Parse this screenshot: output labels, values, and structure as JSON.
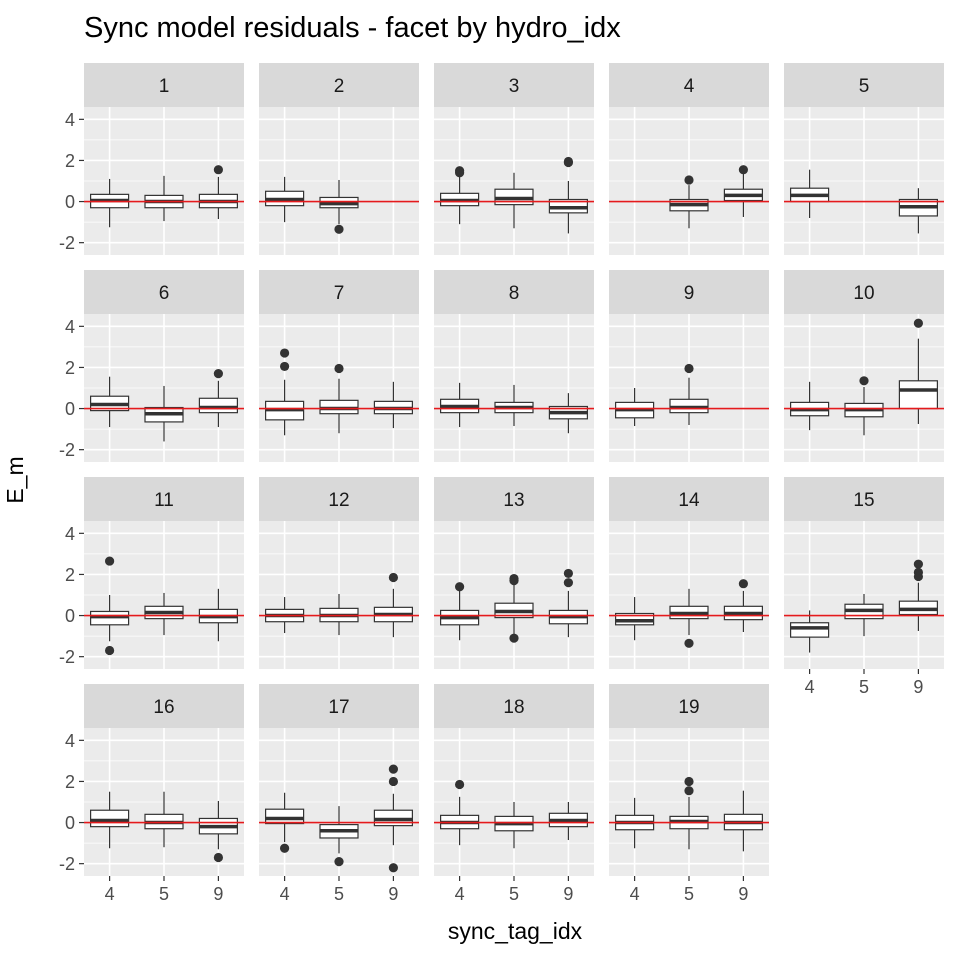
{
  "chart_data": {
    "type": "boxplot",
    "title": "Sync model residuals - facet by hydro_idx",
    "xlabel": "sync_tag_idx",
    "ylabel": "E_m",
    "ylim": [
      -2.6,
      4.6
    ],
    "yticks": [
      -2,
      0,
      2,
      4
    ],
    "categories": [
      "4",
      "5",
      "9"
    ],
    "reference_line": {
      "y": 0,
      "color": "#e41a1c"
    },
    "grid": true,
    "colors": {
      "panel_bg": "#ebebeb",
      "strip_bg": "#d9d9d9",
      "grid": "#ffffff",
      "box_fill": "#ffffff",
      "box_line": "#333333",
      "outlier": "#333333"
    },
    "facets": [
      {
        "label": "1",
        "boxes": [
          {
            "x": "4",
            "lower": -1.25,
            "q1": -0.3,
            "median": 0.05,
            "q3": 0.35,
            "upper": 1.1,
            "outliers": []
          },
          {
            "x": "5",
            "lower": -0.95,
            "q1": -0.3,
            "median": 0.0,
            "q3": 0.3,
            "upper": 1.25,
            "outliers": []
          },
          {
            "x": "9",
            "lower": -0.85,
            "q1": -0.3,
            "median": 0.0,
            "q3": 0.35,
            "upper": 1.2,
            "outliers": [
              1.55
            ]
          }
        ]
      },
      {
        "label": "2",
        "boxes": [
          {
            "x": "4",
            "lower": -1.0,
            "q1": -0.2,
            "median": 0.1,
            "q3": 0.5,
            "upper": 1.2,
            "outliers": []
          },
          {
            "x": "5",
            "lower": -1.1,
            "q1": -0.3,
            "median": -0.1,
            "q3": 0.2,
            "upper": 1.05,
            "outliers": [
              -1.35
            ]
          }
        ]
      },
      {
        "label": "3",
        "boxes": [
          {
            "x": "4",
            "lower": -1.1,
            "q1": -0.2,
            "median": 0.05,
            "q3": 0.4,
            "upper": 1.3,
            "outliers": [
              1.5,
              1.4
            ]
          },
          {
            "x": "5",
            "lower": -1.3,
            "q1": -0.15,
            "median": 0.15,
            "q3": 0.6,
            "upper": 1.4,
            "outliers": []
          },
          {
            "x": "9",
            "lower": -1.55,
            "q1": -0.55,
            "median": -0.3,
            "q3": 0.1,
            "upper": 1.0,
            "outliers": [
              1.9,
              1.95
            ]
          }
        ]
      },
      {
        "label": "4",
        "boxes": [
          {
            "x": "5",
            "lower": -1.3,
            "q1": -0.45,
            "median": -0.15,
            "q3": 0.1,
            "upper": 0.8,
            "outliers": [
              1.05
            ]
          },
          {
            "x": "9",
            "lower": -0.75,
            "q1": 0.05,
            "median": 0.3,
            "q3": 0.6,
            "upper": 1.35,
            "outliers": [
              1.55
            ]
          }
        ]
      },
      {
        "label": "5",
        "boxes": [
          {
            "x": "4",
            "lower": -0.8,
            "q1": 0.0,
            "median": 0.3,
            "q3": 0.65,
            "upper": 1.55,
            "outliers": []
          },
          {
            "x": "9",
            "lower": -1.55,
            "q1": -0.7,
            "median": -0.25,
            "q3": 0.1,
            "upper": 0.65,
            "outliers": []
          }
        ]
      },
      {
        "label": "6",
        "boxes": [
          {
            "x": "4",
            "lower": -0.9,
            "q1": -0.1,
            "median": 0.2,
            "q3": 0.6,
            "upper": 1.55,
            "outliers": []
          },
          {
            "x": "5",
            "lower": -1.6,
            "q1": -0.65,
            "median": -0.25,
            "q3": 0.05,
            "upper": 1.1,
            "outliers": []
          },
          {
            "x": "9",
            "lower": -0.9,
            "q1": -0.2,
            "median": 0.05,
            "q3": 0.5,
            "upper": 1.35,
            "outliers": [
              1.7
            ]
          }
        ]
      },
      {
        "label": "7",
        "boxes": [
          {
            "x": "4",
            "lower": -1.3,
            "q1": -0.55,
            "median": -0.05,
            "q3": 0.35,
            "upper": 1.4,
            "outliers": [
              2.05,
              2.7
            ]
          },
          {
            "x": "5",
            "lower": -1.2,
            "q1": -0.25,
            "median": 0.0,
            "q3": 0.4,
            "upper": 1.45,
            "outliers": [
              1.95
            ]
          },
          {
            "x": "9",
            "lower": -0.95,
            "q1": -0.25,
            "median": 0.0,
            "q3": 0.35,
            "upper": 1.3,
            "outliers": []
          }
        ]
      },
      {
        "label": "8",
        "boxes": [
          {
            "x": "4",
            "lower": -0.9,
            "q1": -0.2,
            "median": 0.1,
            "q3": 0.45,
            "upper": 1.25,
            "outliers": []
          },
          {
            "x": "5",
            "lower": -0.85,
            "q1": -0.2,
            "median": 0.05,
            "q3": 0.3,
            "upper": 1.15,
            "outliers": []
          },
          {
            "x": "9",
            "lower": -1.2,
            "q1": -0.5,
            "median": -0.2,
            "q3": 0.1,
            "upper": 0.75,
            "outliers": []
          }
        ]
      },
      {
        "label": "9",
        "boxes": [
          {
            "x": "4",
            "lower": -0.85,
            "q1": -0.45,
            "median": -0.05,
            "q3": 0.3,
            "upper": 1.0,
            "outliers": []
          },
          {
            "x": "5",
            "lower": -0.8,
            "q1": -0.2,
            "median": 0.05,
            "q3": 0.45,
            "upper": 1.5,
            "outliers": [
              1.95
            ]
          }
        ]
      },
      {
        "label": "10",
        "boxes": [
          {
            "x": "4",
            "lower": -1.05,
            "q1": -0.35,
            "median": -0.05,
            "q3": 0.3,
            "upper": 1.3,
            "outliers": []
          },
          {
            "x": "5",
            "lower": -1.3,
            "q1": -0.4,
            "median": -0.05,
            "q3": 0.25,
            "upper": 1.05,
            "outliers": [
              1.35
            ]
          },
          {
            "x": "9",
            "lower": -0.75,
            "q1": 0.0,
            "median": 0.9,
            "q3": 1.35,
            "upper": 3.4,
            "outliers": [
              4.15
            ]
          }
        ]
      },
      {
        "label": "11",
        "boxes": [
          {
            "x": "4",
            "lower": -1.25,
            "q1": -0.45,
            "median": -0.05,
            "q3": 0.2,
            "upper": 1.0,
            "outliers": [
              2.65,
              -1.7
            ]
          },
          {
            "x": "5",
            "lower": -0.95,
            "q1": -0.15,
            "median": 0.15,
            "q3": 0.45,
            "upper": 1.1,
            "outliers": []
          },
          {
            "x": "9",
            "lower": -1.25,
            "q1": -0.35,
            "median": -0.05,
            "q3": 0.3,
            "upper": 1.3,
            "outliers": []
          }
        ]
      },
      {
        "label": "12",
        "boxes": [
          {
            "x": "4",
            "lower": -0.85,
            "q1": -0.3,
            "median": 0.0,
            "q3": 0.3,
            "upper": 0.9,
            "outliers": []
          },
          {
            "x": "5",
            "lower": -0.95,
            "q1": -0.3,
            "median": 0.0,
            "q3": 0.35,
            "upper": 1.05,
            "outliers": []
          },
          {
            "x": "9",
            "lower": -1.05,
            "q1": -0.3,
            "median": 0.05,
            "q3": 0.4,
            "upper": 1.3,
            "outliers": [
              1.85
            ]
          }
        ]
      },
      {
        "label": "13",
        "boxes": [
          {
            "x": "4",
            "lower": -1.2,
            "q1": -0.45,
            "median": -0.1,
            "q3": 0.25,
            "upper": 1.2,
            "outliers": [
              1.4
            ]
          },
          {
            "x": "5",
            "lower": -0.9,
            "q1": -0.1,
            "median": 0.2,
            "q3": 0.6,
            "upper": 1.5,
            "outliers": [
              1.8,
              1.7,
              -1.1
            ]
          },
          {
            "x": "9",
            "lower": -1.05,
            "q1": -0.4,
            "median": -0.05,
            "q3": 0.25,
            "upper": 1.2,
            "outliers": [
              2.05,
              1.6
            ]
          }
        ]
      },
      {
        "label": "14",
        "boxes": [
          {
            "x": "4",
            "lower": -1.2,
            "q1": -0.45,
            "median": -0.25,
            "q3": 0.1,
            "upper": 0.9,
            "outliers": []
          },
          {
            "x": "5",
            "lower": -0.95,
            "q1": -0.15,
            "median": 0.1,
            "q3": 0.45,
            "upper": 1.3,
            "outliers": [
              -1.35
            ]
          },
          {
            "x": "9",
            "lower": -0.8,
            "q1": -0.2,
            "median": 0.1,
            "q3": 0.45,
            "upper": 1.2,
            "outliers": [
              1.55
            ]
          }
        ]
      },
      {
        "label": "15",
        "boxes": [
          {
            "x": "4",
            "lower": -1.8,
            "q1": -1.05,
            "median": -0.6,
            "q3": -0.35,
            "upper": 0.25,
            "outliers": []
          },
          {
            "x": "5",
            "lower": -1.0,
            "q1": -0.15,
            "median": 0.25,
            "q3": 0.55,
            "upper": 1.05,
            "outliers": []
          },
          {
            "x": "9",
            "lower": -0.75,
            "q1": 0.05,
            "median": 0.3,
            "q3": 0.7,
            "upper": 1.6,
            "outliers": [
              2.5,
              2.1,
              1.9
            ]
          }
        ]
      },
      {
        "label": "16",
        "boxes": [
          {
            "x": "4",
            "lower": -1.25,
            "q1": -0.2,
            "median": 0.1,
            "q3": 0.6,
            "upper": 1.5,
            "outliers": []
          },
          {
            "x": "5",
            "lower": -1.2,
            "q1": -0.3,
            "median": 0.0,
            "q3": 0.4,
            "upper": 1.5,
            "outliers": []
          },
          {
            "x": "9",
            "lower": -1.3,
            "q1": -0.55,
            "median": -0.2,
            "q3": 0.2,
            "upper": 1.05,
            "outliers": [
              -1.7
            ]
          }
        ]
      },
      {
        "label": "17",
        "boxes": [
          {
            "x": "4",
            "lower": -0.95,
            "q1": -0.05,
            "median": 0.2,
            "q3": 0.65,
            "upper": 1.45,
            "outliers": [
              -1.25
            ]
          },
          {
            "x": "5",
            "lower": -1.5,
            "q1": -0.75,
            "median": -0.4,
            "q3": -0.1,
            "upper": 0.8,
            "outliers": [
              -1.9
            ]
          },
          {
            "x": "9",
            "lower": -1.1,
            "q1": -0.15,
            "median": 0.15,
            "q3": 0.6,
            "upper": 1.4,
            "outliers": [
              2.6,
              2.0,
              -2.2
            ]
          }
        ]
      },
      {
        "label": "18",
        "boxes": [
          {
            "x": "4",
            "lower": -1.1,
            "q1": -0.3,
            "median": 0.0,
            "q3": 0.35,
            "upper": 1.25,
            "outliers": [
              1.85
            ]
          },
          {
            "x": "5",
            "lower": -1.25,
            "q1": -0.4,
            "median": -0.05,
            "q3": 0.3,
            "upper": 1.0,
            "outliers": []
          },
          {
            "x": "9",
            "lower": -0.85,
            "q1": -0.2,
            "median": 0.1,
            "q3": 0.45,
            "upper": 1.0,
            "outliers": []
          }
        ]
      },
      {
        "label": "19",
        "boxes": [
          {
            "x": "4",
            "lower": -1.25,
            "q1": -0.35,
            "median": 0.0,
            "q3": 0.35,
            "upper": 1.2,
            "outliers": []
          },
          {
            "x": "5",
            "lower": -1.3,
            "q1": -0.3,
            "median": 0.05,
            "q3": 0.3,
            "upper": 1.25,
            "outliers": [
              2.0,
              1.55
            ]
          },
          {
            "x": "9",
            "lower": -1.4,
            "q1": -0.35,
            "median": 0.0,
            "q3": 0.4,
            "upper": 1.55,
            "outliers": []
          }
        ]
      }
    ],
    "x_axis_panels": [
      "15",
      "16",
      "17",
      "18",
      "19"
    ]
  }
}
